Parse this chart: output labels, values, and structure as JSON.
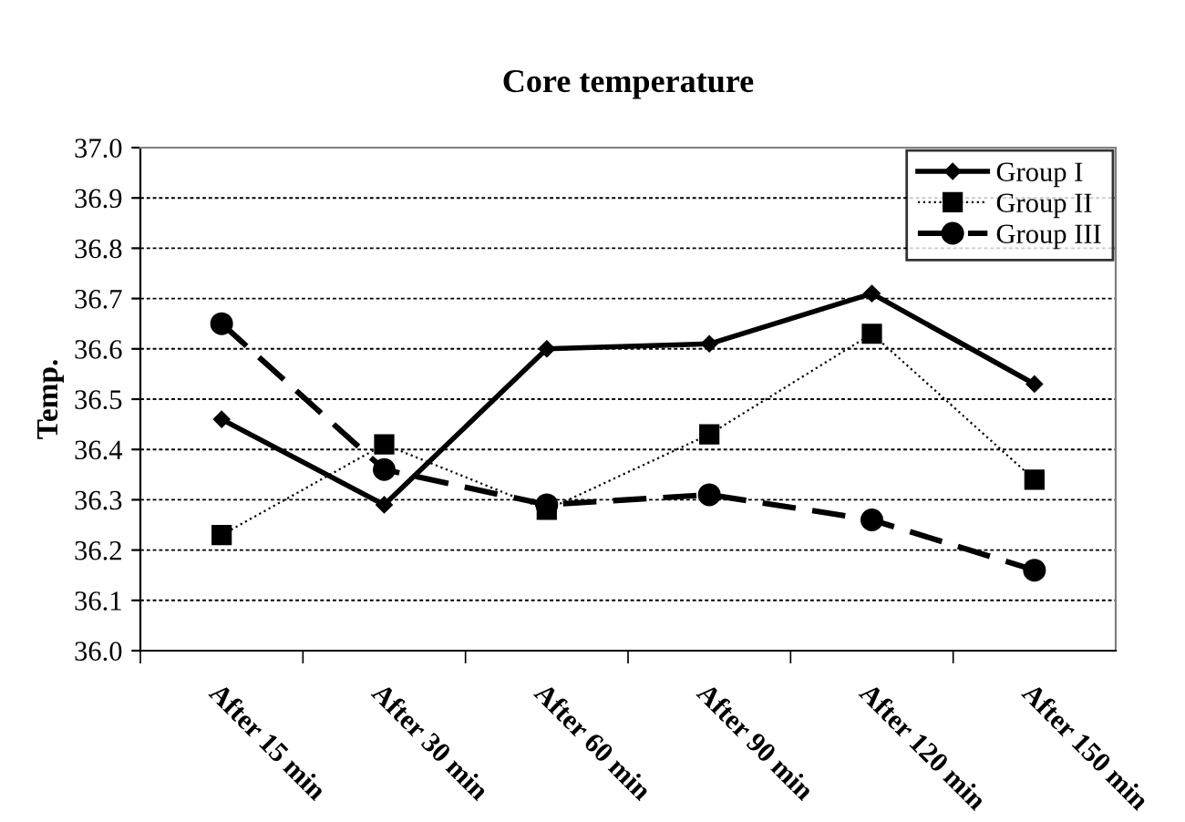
{
  "chart_data": {
    "type": "line",
    "title": "Core temperature",
    "ylabel": "Temp.",
    "categories": [
      "After 15 min",
      "After 30 min",
      "After 60 min",
      "After 90 min",
      "After 120 min",
      "After 150 min"
    ],
    "series": [
      {
        "name": "Group I",
        "color": "#000000",
        "marker": "diamond",
        "line_style": "solid",
        "values": [
          36.46,
          36.29,
          36.6,
          36.61,
          36.71,
          36.53
        ]
      },
      {
        "name": "Group II",
        "color": "#000000",
        "marker": "square",
        "line_style": "dotted",
        "values": [
          36.23,
          36.41,
          36.28,
          36.43,
          36.63,
          36.34
        ]
      },
      {
        "name": "Group III",
        "color": "#000000",
        "marker": "circle",
        "line_style": "dashed",
        "values": [
          36.65,
          36.36,
          36.29,
          36.31,
          36.26,
          36.16
        ]
      }
    ],
    "ylim": [
      36.0,
      37.0
    ],
    "yticks": [
      {
        "value": 36.0,
        "label": "36.0"
      },
      {
        "value": 36.1,
        "label": "36.1"
      },
      {
        "value": 36.2,
        "label": "36.2"
      },
      {
        "value": 36.3,
        "label": "36.3"
      },
      {
        "value": 36.4,
        "label": "36.4"
      },
      {
        "value": 36.5,
        "label": "36.5"
      },
      {
        "value": 36.6,
        "label": "36.6"
      },
      {
        "value": 36.7,
        "label": "36.7"
      },
      {
        "value": 36.8,
        "label": "36.8"
      },
      {
        "value": 36.9,
        "label": "36.9"
      },
      {
        "value": 37.0,
        "label": "37.0"
      }
    ],
    "grid": "y",
    "legend": "top right"
  }
}
